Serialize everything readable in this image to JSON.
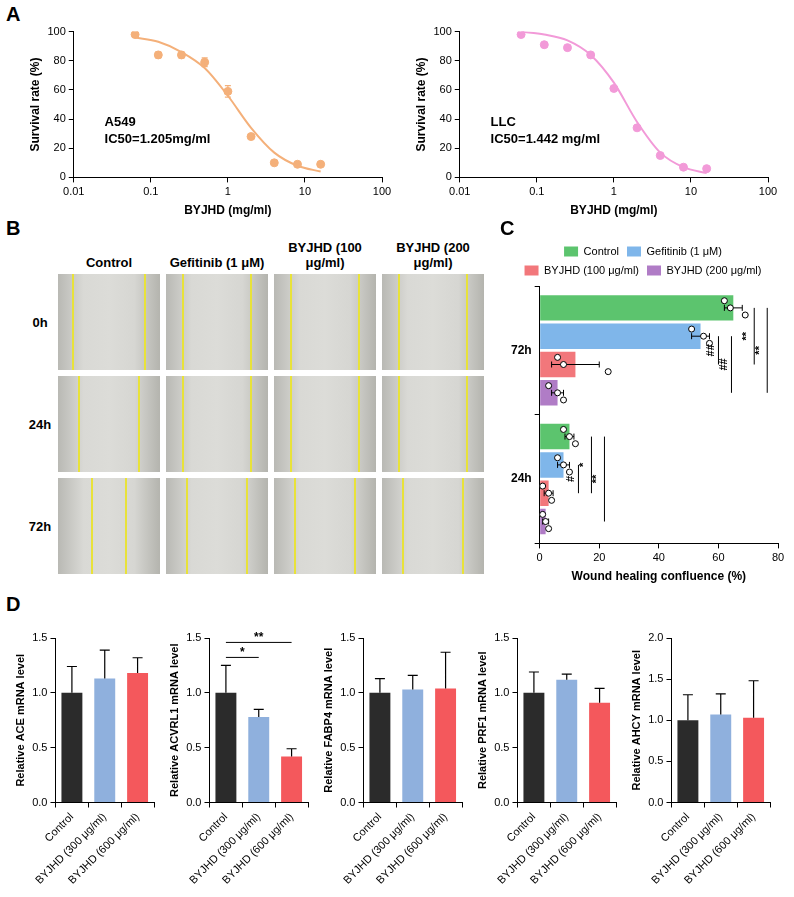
{
  "chart_data": [
    {
      "panel": "A",
      "type": "scatter",
      "annotations": [
        "A549",
        "IC50=1.205mg/ml"
      ],
      "x_label": "BYJHD (mg/ml)",
      "y_label": "Survival rate (%)",
      "log": "x",
      "xlim": [
        0.01,
        100
      ],
      "xticks": [
        0.01,
        0.1,
        1,
        10,
        100
      ],
      "ylim": [
        0,
        100
      ],
      "yticks": [
        0,
        20,
        40,
        60,
        80,
        100
      ],
      "grid": false,
      "series": [
        {
          "type": "scatter",
          "color": "#f4b07a",
          "x": [
            0.0625,
            0.125,
            0.25,
            0.5,
            1,
            2,
            4,
            8,
            16
          ],
          "values": [
            98,
            84,
            84,
            79,
            59,
            28,
            10,
            9,
            9
          ],
          "errors": [
            1.5,
            2,
            2,
            3,
            4,
            1,
            1,
            0.5,
            0.5
          ]
        },
        {
          "type": "line",
          "color": "#f4b07a",
          "x": [
            0.0625,
            0.125,
            0.25,
            0.5,
            1,
            2,
            4,
            8,
            16
          ],
          "values": [
            96,
            93,
            86,
            75,
            56,
            34,
            17,
            8,
            4
          ]
        }
      ]
    },
    {
      "type": "scatter",
      "annotations": [
        "LLC",
        "IC50=1.442 mg/ml"
      ],
      "x_label": "BYJHD (mg/ml)",
      "y_label": "Survival rate (%)",
      "log": "x",
      "xlim": [
        0.01,
        100
      ],
      "xticks": [
        0.01,
        0.1,
        1,
        10,
        100
      ],
      "ylim": [
        0,
        100
      ],
      "yticks": [
        0,
        20,
        40,
        60,
        80,
        100
      ],
      "grid": false,
      "series": [
        {
          "type": "scatter",
          "color": "#f29ad8",
          "x": [
            0.0625,
            0.125,
            0.25,
            0.5,
            1,
            2,
            4,
            8,
            16
          ],
          "values": [
            98,
            91,
            89,
            84,
            61,
            34,
            15,
            7,
            6
          ],
          "errors": [
            1,
            1.5,
            1,
            1,
            1,
            1,
            1,
            0.5,
            0.5
          ]
        },
        {
          "type": "line",
          "color": "#f29ad8",
          "x": [
            0.0625,
            0.125,
            0.25,
            0.5,
            1,
            2,
            4,
            8,
            16
          ],
          "values": [
            100,
            98,
            94,
            84,
            65,
            38,
            17,
            7,
            3
          ]
        }
      ]
    },
    {
      "panel": "C",
      "type": "bar",
      "orientation": "horizontal",
      "legend": "top",
      "x_label": "Wound healing confluence (%)",
      "categories": [
        "72h",
        "24h"
      ],
      "xlim": [
        0,
        80
      ],
      "xticks": [
        0,
        20,
        40,
        60,
        80
      ],
      "grid": false,
      "series": [
        {
          "name": "Control",
          "color": "#5cc46e",
          "values": [
            65,
            10
          ],
          "errors": [
            3,
            1.5
          ],
          "points": [
            [
              62,
              64,
              69
            ],
            [
              8,
              10,
              12
            ]
          ]
        },
        {
          "name": "Gefitinib (1 μM)",
          "color": "#7fb6ea",
          "values": [
            54,
            8
          ],
          "errors": [
            3,
            2
          ],
          "points": [
            [
              51,
              55,
              57
            ],
            [
              6,
              8,
              10
            ]
          ]
        },
        {
          "name": "BYJHD (100 μg/ml)",
          "color": "#f2777b",
          "values": [
            12,
            3
          ],
          "errors": [
            8,
            1.5
          ],
          "points": [
            [
              6,
              8,
              23
            ],
            [
              1,
              3,
              4
            ]
          ]
        },
        {
          "name": "BYJHD (200 μg/ml)",
          "color": "#b07cc6",
          "values": [
            6,
            2
          ],
          "errors": [
            2,
            1
          ],
          "points": [
            [
              3,
              6,
              8
            ],
            [
              1,
              2,
              3
            ]
          ]
        }
      ],
      "significance": [
        {
          "category": "72h",
          "from": "Gefitinib (1 μM)",
          "to": "BYJHD (100 μg/ml)",
          "label": "##"
        },
        {
          "category": "72h",
          "from": "Gefitinib (1 μM)",
          "to": "BYJHD (200 μg/ml)",
          "label": "##"
        },
        {
          "category": "72h",
          "from": "Control",
          "to": "BYJHD (100 μg/ml)",
          "label": "**"
        },
        {
          "category": "72h",
          "from": "Control",
          "to": "BYJHD (200 μg/ml)",
          "label": "**"
        },
        {
          "category": "24h",
          "from": "Gefitinib (1 μM)",
          "to": "BYJHD (100 μg/ml)",
          "label": "#"
        },
        {
          "category": "24h",
          "from": "Control",
          "to": "BYJHD (100 μg/ml)",
          "label": "*"
        },
        {
          "category": "24h",
          "from": "Control",
          "to": "BYJHD (200 μg/ml)",
          "label": "**"
        }
      ]
    },
    {
      "panel": "D",
      "type": "bar",
      "y_label": "Relative ACE mRNA level",
      "categories": [
        "Control",
        "BYJHD (300 μg/ml)",
        "BYJHD (600 μg/ml)"
      ],
      "values": [
        1,
        1.13,
        1.18
      ],
      "errors": [
        0.24,
        0.26,
        0.14
      ],
      "colors": [
        "#2b2b2b",
        "#8fb0dd",
        "#f4585c"
      ],
      "ylim": [
        0,
        1.5
      ],
      "yticks": [
        {
          "value": 0,
          "label": "0.0"
        },
        0.5,
        {
          "value": 1,
          "label": "1.0"
        },
        1.5
      ],
      "grid": false
    },
    {
      "type": "bar",
      "y_label": "Relative ACVRL1 mRNA level",
      "categories": [
        "Control",
        "BYJHD (300 μg/ml)",
        "BYJHD (600 μg/ml)"
      ],
      "values": [
        1,
        0.78,
        0.42
      ],
      "errors": [
        0.25,
        0.07,
        0.07
      ],
      "colors": [
        "#2b2b2b",
        "#8fb0dd",
        "#f4585c"
      ],
      "ylim": [
        0,
        1.5
      ],
      "yticks": [
        {
          "value": 0,
          "label": "0.0"
        },
        0.5,
        {
          "value": 1,
          "label": "1.0"
        },
        1.5
      ],
      "grid": false,
      "significance": [
        {
          "from": "Control",
          "to": "BYJHD (300 μg/ml)",
          "label": "*"
        },
        {
          "from": "Control",
          "to": "BYJHD (600 μg/ml)",
          "label": "**"
        }
      ]
    },
    {
      "type": "bar",
      "y_label": "Relative FABP4 mRNA level",
      "categories": [
        "Control",
        "BYJHD (300 μg/ml)",
        "BYJHD (600 μg/ml)"
      ],
      "values": [
        1,
        1.03,
        1.04
      ],
      "errors": [
        0.13,
        0.13,
        0.33
      ],
      "colors": [
        "#2b2b2b",
        "#8fb0dd",
        "#f4585c"
      ],
      "ylim": [
        0,
        1.5
      ],
      "yticks": [
        {
          "value": 0,
          "label": "0.0"
        },
        0.5,
        {
          "value": 1,
          "label": "1.0"
        },
        1.5
      ],
      "grid": false
    },
    {
      "type": "bar",
      "y_label": "Relative PRF1 mRNA level",
      "categories": [
        "Control",
        "BYJHD (300 μg/ml)",
        "BYJHD (600 μg/ml)"
      ],
      "values": [
        1,
        1.12,
        0.91
      ],
      "errors": [
        0.19,
        0.05,
        0.13
      ],
      "colors": [
        "#2b2b2b",
        "#8fb0dd",
        "#f4585c"
      ],
      "ylim": [
        0,
        1.5
      ],
      "yticks": [
        {
          "value": 0,
          "label": "0.0"
        },
        0.5,
        {
          "value": 1,
          "label": "1.0"
        },
        1.5
      ],
      "grid": false
    },
    {
      "type": "bar",
      "y_label": "Relative AHCY mRNA level",
      "categories": [
        "Control",
        "BYJHD (300 μg/ml)",
        "BYJHD (600 μg/ml)"
      ],
      "values": [
        1,
        1.07,
        1.03
      ],
      "errors": [
        0.31,
        0.25,
        0.45
      ],
      "colors": [
        "#2b2b2b",
        "#8fb0dd",
        "#f4585c"
      ],
      "ylim": [
        0,
        2
      ],
      "yticks": [
        {
          "value": 0,
          "label": "0.0"
        },
        0.5,
        {
          "value": 1,
          "label": "1.0"
        },
        1.5,
        {
          "value": 2,
          "label": "2.0"
        }
      ],
      "grid": false
    }
  ],
  "image_grid": {
    "panel": "B",
    "columns": [
      "Control",
      "Gefitinib (1 μM)",
      "BYJHD (100 μg/ml)",
      "BYJHD (200 μg/ml)"
    ],
    "rows": [
      "0h",
      "24h",
      "72h"
    ]
  }
}
